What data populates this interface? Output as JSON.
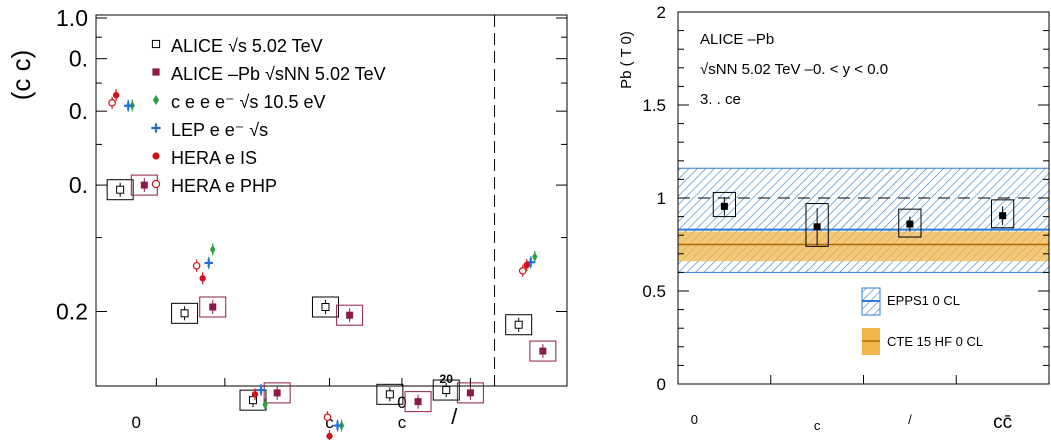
{
  "chart_data": [
    {
      "type": "scatter",
      "ylabel": "(c  c)",
      "ylim": [
        0.1,
        1.0
      ],
      "yticks": [
        {
          "value": 1.0,
          "label": "1.0"
        },
        {
          "value": 0.8,
          "label": "0."
        },
        {
          "value": 0.6,
          "label": "0."
        },
        {
          "value": 0.4,
          "label": "0."
        },
        {
          "value": 0.2,
          "label": "0.2"
        }
      ],
      "xlabels": [
        {
          "label": "0",
          "x": 1.0
        },
        {
          "label": "c",
          "x": 5.8
        },
        {
          "label": "0",
          "x": 7.6
        },
        {
          "label": "c",
          "x": 7.6
        },
        {
          "label": "/",
          "x": 8.9
        }
      ],
      "xlim": [
        0.0,
        11.7
      ],
      "divider_x": 9.9,
      "annotation": "20",
      "annotation_x": 8.7,
      "annotation_y": 0.135,
      "legend": [
        {
          "marker": "open-square",
          "color": "#000000",
          "text": "ALICE      √s   5.02 TeV"
        },
        {
          "marker": "filled-square",
          "color": "#8b1a4a",
          "text": "ALICE   –Pb  √sNN  5.02 TeV"
        },
        {
          "marker": "diamond",
          "color": "#2e9e3e",
          "text": "  c  e  e    e⁻  √s   10.5  eV"
        },
        {
          "marker": "cross",
          "color": "#1f6fd6",
          "text": "LEP  e e⁻  √s"
        },
        {
          "marker": "filled-circle",
          "color": "#d0131a",
          "text": "HERA  e    IS"
        },
        {
          "marker": "open-circle",
          "color": "#d0131a",
          "text": "HERA  e   PHP"
        }
      ],
      "series": [
        {
          "name": "ALICE pp",
          "marker": "open-square",
          "color": "#000000",
          "points": [
            {
              "x": 0.6,
              "y": 0.39
            },
            {
              "x": 2.2,
              "y": 0.198
            },
            {
              "x": 3.9,
              "y": 0.123
            },
            {
              "x": 5.7,
              "y": 0.205
            },
            {
              "x": 7.3,
              "y": 0.127
            },
            {
              "x": 8.7,
              "y": 0.13
            },
            {
              "x": 10.5,
              "y": 0.186
            }
          ]
        },
        {
          "name": "ALICE p-Pb",
          "marker": "filled-square",
          "color": "#8b1a4a",
          "points": [
            {
              "x": 1.2,
              "y": 0.4
            },
            {
              "x": 2.9,
              "y": 0.205
            },
            {
              "x": 4.5,
              "y": 0.128
            },
            {
              "x": 6.3,
              "y": 0.196
            },
            {
              "x": 8.0,
              "y": 0.122
            },
            {
              "x": 9.3,
              "y": 0.128
            },
            {
              "x": 11.1,
              "y": 0.161
            }
          ]
        },
        {
          "name": "e+e- 10.5",
          "marker": "diamond",
          "color": "#2e9e3e",
          "points": [
            {
              "x": 0.9,
              "y": 0.619
            },
            {
              "x": 2.9,
              "y": 0.281
            },
            {
              "x": 4.2,
              "y": 0.12
            },
            {
              "x": 6.1,
              "y": 0.107
            },
            {
              "x": 10.9,
              "y": 0.27
            }
          ]
        },
        {
          "name": "LEP",
          "marker": "cross",
          "color": "#1f6fd6",
          "points": [
            {
              "x": 0.8,
              "y": 0.618
            },
            {
              "x": 2.8,
              "y": 0.261
            },
            {
              "x": 4.1,
              "y": 0.13
            },
            {
              "x": 6.0,
              "y": 0.107
            },
            {
              "x": 10.8,
              "y": 0.262
            }
          ]
        },
        {
          "name": "HERA DIS",
          "marker": "filled-circle",
          "color": "#d0131a",
          "points": [
            {
              "x": 0.5,
              "y": 0.655
            },
            {
              "x": 2.65,
              "y": 0.24
            },
            {
              "x": 3.95,
              "y": 0.127
            },
            {
              "x": 5.8,
              "y": 0.101
            },
            {
              "x": 10.7,
              "y": 0.258
            }
          ]
        },
        {
          "name": "HERA PHP",
          "marker": "open-circle",
          "color": "#d0131a",
          "points": [
            {
              "x": 0.4,
              "y": 0.628
            },
            {
              "x": 2.5,
              "y": 0.257
            },
            {
              "x": 5.75,
              "y": 0.112
            },
            {
              "x": 10.6,
              "y": 0.25
            }
          ]
        }
      ]
    },
    {
      "type": "scatter",
      "ylabel": "Pb (  T  0)",
      "ylim": [
        0,
        2
      ],
      "yticks": [
        {
          "value": 0,
          "label": "0"
        },
        {
          "value": 0.5,
          "label": "0.5"
        },
        {
          "value": 1,
          "label": "1"
        },
        {
          "value": 1.5,
          "label": "1.5"
        },
        {
          "value": 2,
          "label": "2"
        }
      ],
      "xlim": [
        0,
        4
      ],
      "categories": [
        "0",
        "c",
        "/",
        "cc̄"
      ],
      "text_lines": [
        "ALICE   –Pb",
        "√sNN  5.02 TeV   –0.   <   y < 0.0",
        "3.      .  ce"
      ],
      "points": [
        {
          "x": 0.5,
          "y": 0.955,
          "err": 0.05,
          "box_half": 0.12,
          "box_low": 0.9,
          "box_high": 1.03
        },
        {
          "x": 1.5,
          "y": 0.845,
          "err": 0.1,
          "box_half": 0.12,
          "box_low": 0.74,
          "box_high": 0.97
        },
        {
          "x": 2.5,
          "y": 0.86,
          "err": 0.04,
          "box_half": 0.12,
          "box_low": 0.79,
          "box_high": 0.94
        },
        {
          "x": 3.5,
          "y": 0.905,
          "err": 0.05,
          "box_half": 0.12,
          "box_low": 0.84,
          "box_high": 0.99
        }
      ],
      "bands": [
        {
          "name": "EPPS1   0  CL",
          "style": "hatched",
          "color": "#2a7bd1",
          "low": 0.6,
          "high": 1.16,
          "central": 0.83
        },
        {
          "name": "CTE 15    HF    0  CL",
          "style": "filled",
          "color": "#f2b54a",
          "low": 0.66,
          "high": 0.82,
          "central": 0.75
        }
      ],
      "reference_line": 1
    }
  ]
}
